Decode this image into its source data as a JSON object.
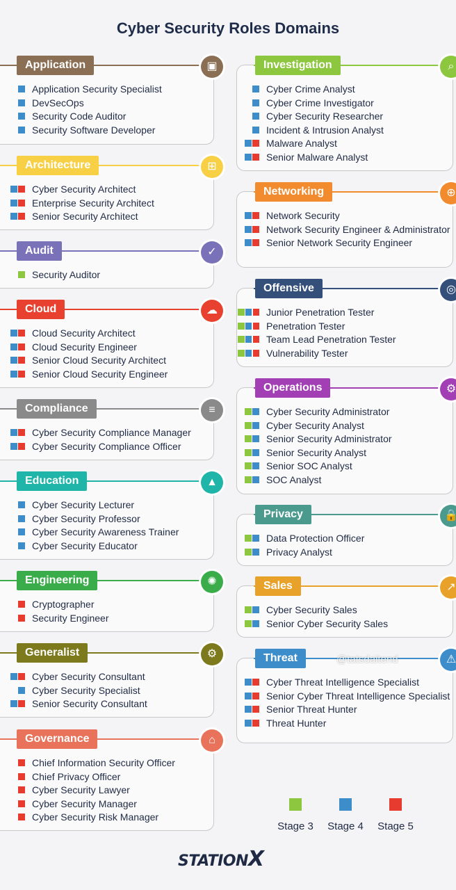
{
  "title": "Cyber Security Roles Domains",
  "legend": [
    {
      "label": "Stage 3",
      "color": "#8dc63f"
    },
    {
      "label": "Stage 4",
      "color": "#3d8dca"
    },
    {
      "label": "Stage 5",
      "color": "#e63b2e"
    }
  ],
  "logo": {
    "text": "STATION",
    "x": "X"
  },
  "watermark": "@tatsdaitend",
  "left": [
    {
      "name": "Application",
      "color": "#8b6f54",
      "icon": "presentation-icon",
      "glyph": "▣",
      "items": [
        {
          "text": "Application Security Specialist",
          "stages": [
            4
          ]
        },
        {
          "text": "DevSecOps",
          "stages": [
            4
          ]
        },
        {
          "text": "Security Code Auditor",
          "stages": [
            4
          ]
        },
        {
          "text": "Security Software Developer",
          "stages": [
            4
          ]
        }
      ]
    },
    {
      "name": "Architecture",
      "color": "#f7d046",
      "icon": "network-icon",
      "glyph": "⊞",
      "items": [
        {
          "text": "Cyber Security Architect",
          "stages": [
            4,
            5
          ]
        },
        {
          "text": "Enterprise Security Architect",
          "stages": [
            4,
            5
          ]
        },
        {
          "text": "Senior Security Architect",
          "stages": [
            4,
            5
          ]
        }
      ]
    },
    {
      "name": "Audit",
      "color": "#7a72b8",
      "icon": "document-check-icon",
      "glyph": "✓",
      "items": [
        {
          "text": "Security Auditor",
          "stages": [
            3
          ]
        }
      ]
    },
    {
      "name": "Cloud",
      "color": "#e8412f",
      "icon": "cloud-icon",
      "glyph": "☁",
      "items": [
        {
          "text": "Cloud Security Architect",
          "stages": [
            4,
            5
          ]
        },
        {
          "text": "Cloud Security Engineer",
          "stages": [
            4,
            5
          ]
        },
        {
          "text": "Senior Cloud Security Architect",
          "stages": [
            4,
            5
          ]
        },
        {
          "text": "Senior Cloud Security Engineer",
          "stages": [
            4,
            5
          ]
        }
      ]
    },
    {
      "name": "Compliance",
      "color": "#8a8a8a",
      "icon": "clipboard-icon",
      "glyph": "≡",
      "items": [
        {
          "text": "Cyber Security Compliance Manager",
          "stages": [
            4,
            5
          ]
        },
        {
          "text": "Cyber Security Compliance Officer",
          "stages": [
            4,
            5
          ]
        }
      ]
    },
    {
      "name": "Education",
      "color": "#1fb5a8",
      "icon": "graduation-cap-icon",
      "glyph": "▲",
      "items": [
        {
          "text": "Cyber Security Lecturer",
          "stages": [
            4
          ]
        },
        {
          "text": "Cyber Security Professor",
          "stages": [
            4
          ]
        },
        {
          "text": "Cyber Security Awareness Trainer",
          "stages": [
            4
          ]
        },
        {
          "text": "Cyber Security Educator",
          "stages": [
            4
          ]
        }
      ]
    },
    {
      "name": "Engineering",
      "color": "#3aad4a",
      "icon": "gear-circuit-icon",
      "glyph": "✺",
      "items": [
        {
          "text": "Cryptographer",
          "stages": [
            5
          ]
        },
        {
          "text": "Security Engineer",
          "stages": [
            5
          ]
        }
      ]
    },
    {
      "name": "Generalist",
      "color": "#7d7a1d",
      "icon": "gear-icon",
      "glyph": "⚙",
      "items": [
        {
          "text": "Cyber Security Consultant",
          "stages": [
            4,
            5
          ]
        },
        {
          "text": "Cyber Security Specialist",
          "stages": [
            4
          ]
        },
        {
          "text": "Senior Security Consultant",
          "stages": [
            4,
            5
          ]
        }
      ]
    },
    {
      "name": "Governance",
      "color": "#e9735a",
      "icon": "bank-icon",
      "glyph": "⌂",
      "items": [
        {
          "text": "Chief Information Security Officer",
          "stages": [
            5
          ]
        },
        {
          "text": "Chief Privacy Officer",
          "stages": [
            5
          ]
        },
        {
          "text": "Cyber Security Lawyer",
          "stages": [
            5
          ]
        },
        {
          "text": "Cyber Security Manager",
          "stages": [
            5
          ]
        },
        {
          "text": "Cyber Security Risk Manager",
          "stages": [
            5
          ]
        }
      ]
    }
  ],
  "right": [
    {
      "name": "Investigation",
      "color": "#8dc63f",
      "icon": "magnifier-icon",
      "glyph": "⌕",
      "items": [
        {
          "text": "Cyber Crime Analyst",
          "stages": [
            4
          ]
        },
        {
          "text": "Cyber Crime Investigator",
          "stages": [
            4
          ]
        },
        {
          "text": "Cyber Security Researcher",
          "stages": [
            4
          ]
        },
        {
          "text": "Incident & Intrusion Analyst",
          "stages": [
            4
          ]
        },
        {
          "text": "Malware Analyst",
          "stages": [
            4,
            5
          ]
        },
        {
          "text": "Senior Malware Analyst",
          "stages": [
            4,
            5
          ]
        }
      ]
    },
    {
      "name": "Networking",
      "color": "#f28a2e",
      "icon": "globe-icon",
      "glyph": "⊕",
      "items": [
        {
          "text": "Network Security",
          "stages": [
            4,
            5
          ]
        },
        {
          "text": "Network Security Engineer & Administrator",
          "stages": [
            4,
            5
          ]
        },
        {
          "text": "Senior Network Security Engineer",
          "stages": [
            4,
            5
          ]
        }
      ]
    },
    {
      "name": "Offensive",
      "color": "#34507a",
      "icon": "monitor-target-icon",
      "glyph": "◎",
      "items": [
        {
          "text": "Junior Penetration Tester",
          "stages": [
            3,
            4,
            5
          ]
        },
        {
          "text": "Penetration Tester",
          "stages": [
            3,
            4,
            5
          ]
        },
        {
          "text": "Team Lead Penetration Tester",
          "stages": [
            3,
            4,
            5
          ]
        },
        {
          "text": "Vulnerability Tester",
          "stages": [
            3,
            4,
            5
          ]
        }
      ]
    },
    {
      "name": "Operations",
      "color": "#a23fb5",
      "icon": "operations-monitor-icon",
      "glyph": "⚙",
      "items": [
        {
          "text": "Cyber Security Administrator",
          "stages": [
            3,
            4
          ]
        },
        {
          "text": "Cyber Security Analyst",
          "stages": [
            3,
            4
          ]
        },
        {
          "text": "Senior Security Administrator",
          "stages": [
            3,
            4
          ]
        },
        {
          "text": "Senior Security Analyst",
          "stages": [
            3,
            4
          ]
        },
        {
          "text": "Senior SOC Analyst",
          "stages": [
            3,
            4
          ]
        },
        {
          "text": "SOC Analyst",
          "stages": [
            3,
            4
          ]
        }
      ]
    },
    {
      "name": "Privacy",
      "color": "#4a9a8e",
      "icon": "lock-icon",
      "glyph": "🔒",
      "items": [
        {
          "text": "Data Protection Officer",
          "stages": [
            3,
            4
          ]
        },
        {
          "text": "Privacy Analyst",
          "stages": [
            3,
            4
          ]
        }
      ]
    },
    {
      "name": "Sales",
      "color": "#e8a22a",
      "icon": "chart-up-icon",
      "glyph": "↗",
      "items": [
        {
          "text": "Cyber Security Sales",
          "stages": [
            3,
            4
          ]
        },
        {
          "text": "Senior Cyber Security Sales",
          "stages": [
            3,
            4
          ]
        }
      ]
    },
    {
      "name": "Threat",
      "color": "#3d8dca",
      "icon": "warning-icon",
      "glyph": "⚠",
      "items": [
        {
          "text": "Cyber Threat Intelligence Specialist",
          "stages": [
            4,
            5
          ]
        },
        {
          "text": "Senior Cyber Threat Intelligence Specialist",
          "stages": [
            4,
            5
          ]
        },
        {
          "text": "Senior Threat Hunter",
          "stages": [
            4,
            5
          ]
        },
        {
          "text": "Threat Hunter",
          "stages": [
            4,
            5
          ]
        }
      ]
    }
  ]
}
